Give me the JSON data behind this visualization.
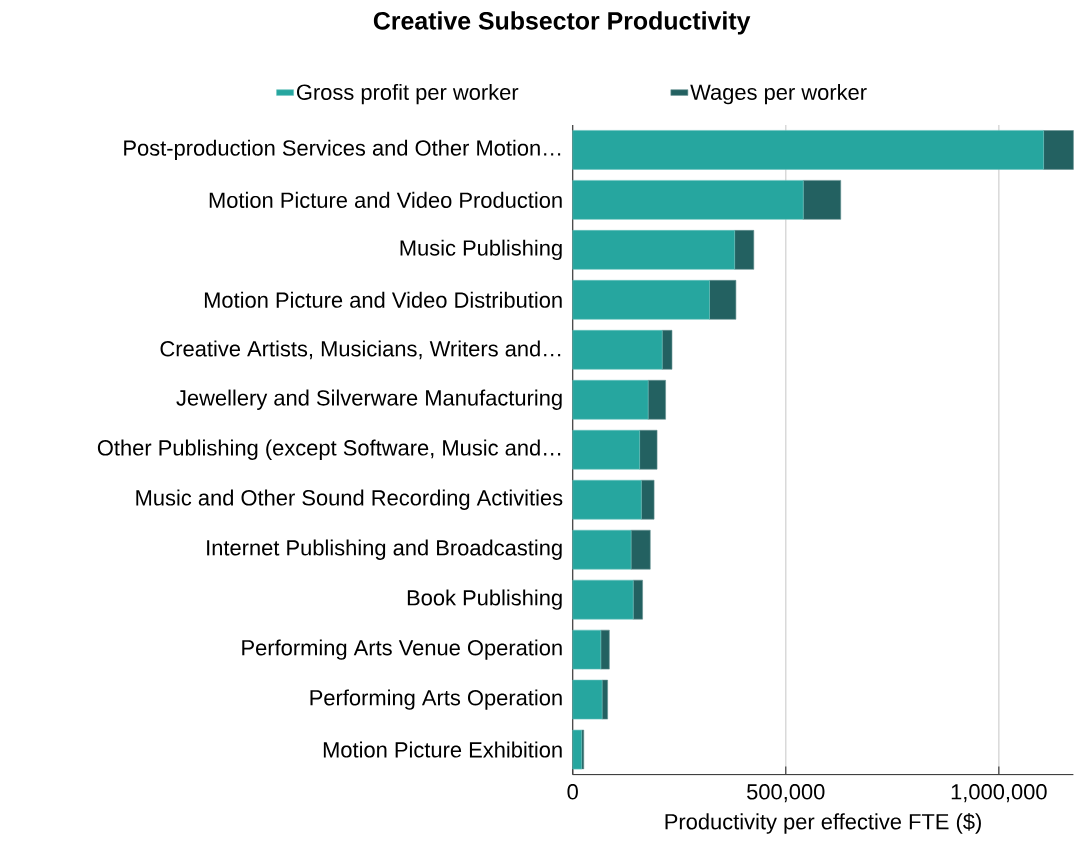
{
  "chart_data": {
    "type": "bar",
    "orientation": "horizontal",
    "stacked": true,
    "title": "Creative Subsector Productivity",
    "xlabel": "Productivity per effective FTE ($)",
    "categories": [
      "Post-production Services and Other Motion…",
      "Motion Picture and Video Production",
      "Music Publishing",
      "Motion Picture and Video Distribution",
      "Creative Artists, Musicians, Writers and…",
      "Jewellery and Silverware Manufacturing",
      "Other Publishing (except Software, Music and…",
      "Music and Other Sound Recording Activities",
      "Internet Publishing and Broadcasting",
      "Book Publishing",
      "Performing Arts Venue Operation",
      "Performing Arts Operation",
      "Motion Picture Exhibition"
    ],
    "series": [
      {
        "name": "Gross profit per worker",
        "color": "#26a69f",
        "values": [
          1105000,
          541000,
          380000,
          321000,
          210000,
          177000,
          157000,
          161000,
          137000,
          142000,
          66000,
          69000,
          21000
        ]
      },
      {
        "name": "Wages per worker",
        "color": "#236161",
        "values": [
          70000,
          88000,
          45000,
          62000,
          23000,
          41000,
          41000,
          30000,
          45000,
          22000,
          20000,
          13000,
          5000
        ]
      }
    ],
    "xlim": [
      0,
      1175000
    ],
    "xticks": [
      0,
      {
        "value": 500000,
        "label": "500,000"
      },
      {
        "value": 1000000,
        "label": "1,000,000"
      }
    ],
    "grid": "x",
    "legend": "top"
  }
}
